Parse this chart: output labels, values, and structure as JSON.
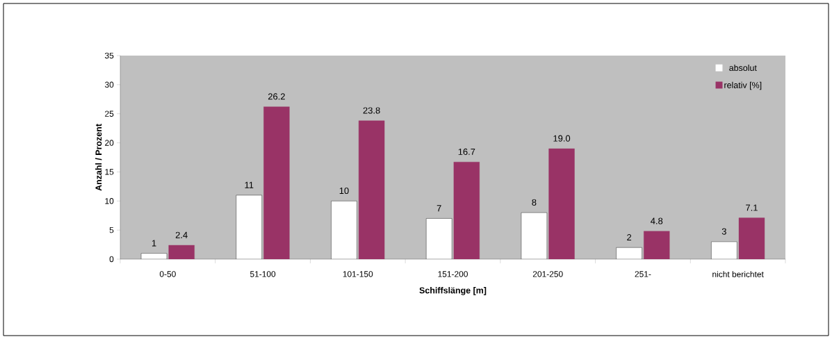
{
  "chart_data": {
    "type": "bar",
    "xlabel": "Schiffslänge [m]",
    "ylabel": "Anzahl / Prozent",
    "categories": [
      "0-50",
      "51-100",
      "101-150",
      "151-200",
      "201-250",
      "251-",
      "nicht berichtet"
    ],
    "series": [
      {
        "name": "absolut",
        "color": "#ffffff",
        "values": [
          1,
          11,
          10,
          7,
          8,
          2,
          3
        ],
        "value_labels": [
          "1",
          "11",
          "10",
          "7",
          "8",
          "2",
          "3"
        ]
      },
      {
        "name": "relativ [%]",
        "color": "#993366",
        "values": [
          2.4,
          26.2,
          23.8,
          16.7,
          19.0,
          4.8,
          7.1
        ],
        "value_labels": [
          "2.4",
          "26.2",
          "23.8",
          "16.7",
          "19.0",
          "4.8",
          "7.1"
        ]
      }
    ],
    "ylim": [
      0,
      35
    ],
    "yticks": [
      0,
      5,
      10,
      15,
      20,
      25,
      30,
      35
    ],
    "legend": "top right"
  }
}
